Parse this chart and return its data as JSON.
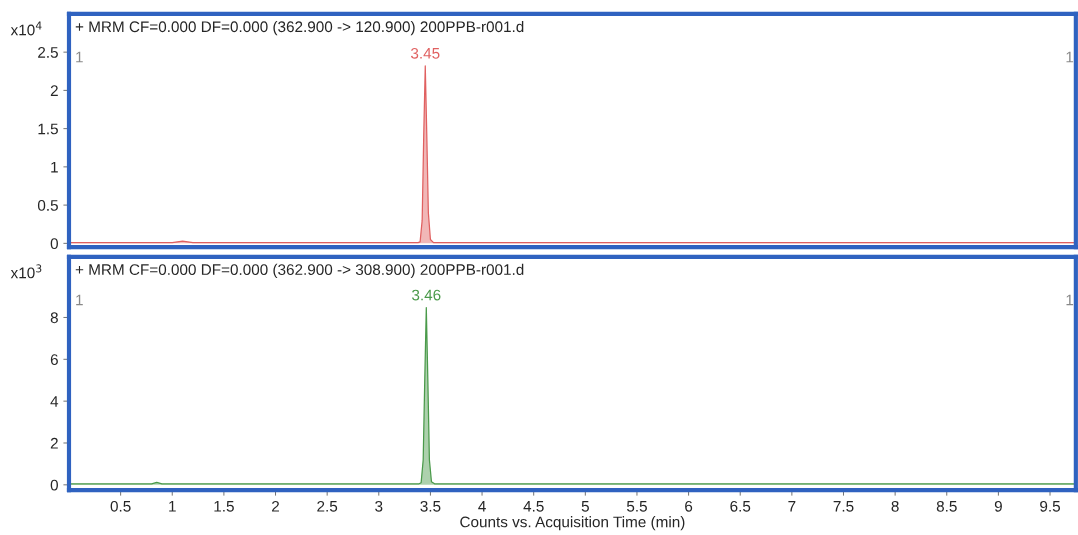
{
  "chart_data": [
    {
      "type": "area",
      "title": "+ MRM CF=0.000 DF=0.000 (362.900 -> 120.900) 200PPB-r001.d",
      "ylabel": "x10$^{4}$",
      "annotations": [
        {
          "text": "3.45",
          "x": 3.45,
          "y": 2.32
        },
        "1",
        "1"
      ],
      "series": [
        {
          "color": "#e06060",
          "x": [
            0,
            1.0,
            1.1,
            1.2,
            3.38,
            3.4,
            3.42,
            3.435,
            3.45,
            3.465,
            3.48,
            3.5,
            3.53,
            3.6,
            7.4,
            8.0,
            9.75
          ],
          "values": [
            0.01,
            0.01,
            0.03,
            0.01,
            0.01,
            0.02,
            0.3,
            1.4,
            2.32,
            1.4,
            0.4,
            0.05,
            0.01,
            0.01,
            0.01,
            0.01,
            0.01
          ]
        }
      ],
      "xlim": [
        0,
        9.75
      ],
      "xticks": [
        0.5,
        1,
        1.5,
        2,
        2.5,
        3,
        3.5,
        4,
        4.5,
        5,
        5.5,
        6,
        6.5,
        7,
        7.5,
        8,
        8.5,
        9,
        9.5
      ],
      "ylim": [
        -0.05,
        3.0
      ],
      "yticks": [
        0,
        0.5,
        1,
        1.5,
        2,
        2.5
      ],
      "tick_labels": "y",
      "grid": false
    },
    {
      "type": "area",
      "title": "+ MRM CF=0.000 DF=0.000 (362.900 -> 308.900) 200PPB-r001.d",
      "ylabel": "x10$^{3}$",
      "xlabel": "Counts vs. Acquisition Time (min)",
      "annotations": [
        {
          "text": "3.46",
          "x": 3.46,
          "y": 8.47
        },
        "1",
        "1"
      ],
      "series": [
        {
          "color": "#4a9a4a",
          "x": [
            0,
            0.8,
            0.85,
            0.9,
            3.39,
            3.41,
            3.43,
            3.445,
            3.46,
            3.475,
            3.49,
            3.51,
            3.54,
            3.6,
            9.75
          ],
          "values": [
            0.05,
            0.05,
            0.12,
            0.05,
            0.05,
            0.1,
            1.2,
            5.0,
            8.47,
            5.0,
            1.2,
            0.15,
            0.05,
            0.05,
            0.05
          ]
        }
      ],
      "xlim": [
        0,
        9.75
      ],
      "xticks": [
        0.5,
        1,
        1.5,
        2,
        2.5,
        3,
        3.5,
        4,
        4.5,
        5,
        5.5,
        6,
        6.5,
        7,
        7.5,
        8,
        8.5,
        9,
        9.5
      ],
      "ylim": [
        -0.25,
        10.9
      ],
      "yticks": [
        0,
        2,
        4,
        6,
        8
      ],
      "grid": false
    }
  ]
}
